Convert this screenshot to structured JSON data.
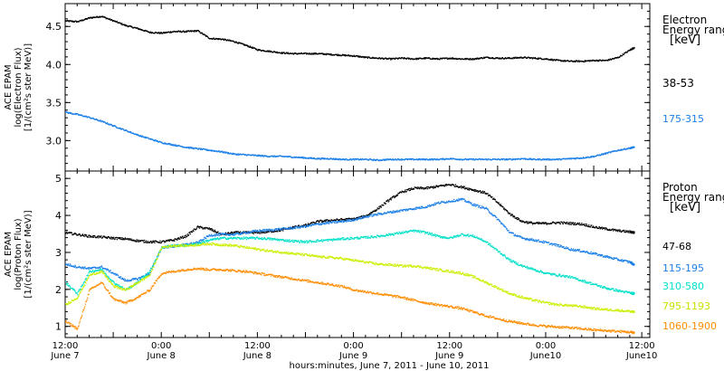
{
  "chart_data": [
    {
      "type": "line",
      "ylabel": [
        "ACE EPAM",
        "log(Electron Flux)",
        "[1/(cm²s ster MeV)]"
      ],
      "ylim": [
        2.6,
        4.8
      ],
      "yticks": [
        3.0,
        3.5,
        4.0,
        4.5
      ],
      "ytick_labels": [
        "3.0",
        "3.5",
        "4.0",
        "4.5"
      ],
      "legend_title": [
        "Electron",
        "Energy range",
        "[keV]"
      ],
      "x": [
        0,
        3,
        6,
        9,
        12,
        15,
        18,
        21,
        24,
        27,
        30,
        33,
        36,
        39,
        42,
        45,
        48,
        51,
        54,
        57,
        60,
        63,
        66,
        69,
        72,
        75,
        78,
        81,
        84,
        87,
        90,
        93,
        96,
        99,
        102,
        105,
        108,
        111,
        114,
        117,
        120,
        123,
        126,
        129,
        132,
        135,
        138,
        141,
        142
      ],
      "series": [
        {
          "name": "38-53",
          "color": "#000000",
          "values": [
            4.58,
            4.57,
            4.62,
            4.64,
            4.58,
            4.52,
            4.48,
            4.43,
            4.42,
            4.44,
            4.44,
            4.45,
            4.35,
            4.34,
            4.31,
            4.26,
            4.2,
            4.18,
            4.16,
            4.15,
            4.15,
            4.15,
            4.14,
            4.13,
            4.12,
            4.1,
            4.09,
            4.08,
            4.09,
            4.08,
            4.09,
            4.08,
            4.09,
            4.08,
            4.08,
            4.1,
            4.09,
            4.09,
            4.1,
            4.09,
            4.08,
            4.06,
            4.05,
            4.05,
            4.06,
            4.06,
            4.1,
            4.2,
            4.23
          ]
        },
        {
          "name": "175-315",
          "color": "#1a7fe8",
          "values": [
            3.38,
            3.35,
            3.31,
            3.26,
            3.2,
            3.14,
            3.08,
            3.03,
            2.98,
            2.95,
            2.92,
            2.9,
            2.88,
            2.86,
            2.83,
            2.82,
            2.81,
            2.8,
            2.8,
            2.79,
            2.78,
            2.77,
            2.77,
            2.76,
            2.76,
            2.76,
            2.75,
            2.76,
            2.76,
            2.76,
            2.76,
            2.76,
            2.77,
            2.76,
            2.76,
            2.76,
            2.76,
            2.76,
            2.77,
            2.76,
            2.76,
            2.76,
            2.77,
            2.78,
            2.8,
            2.84,
            2.88,
            2.91,
            2.92
          ]
        }
      ]
    },
    {
      "type": "line",
      "ylabel": [
        "ACE EPAM",
        "log(Proton Flux)",
        "[1/(cm²s ster MeV)]"
      ],
      "ylim": [
        0.7,
        5.2
      ],
      "yticks": [
        1,
        2,
        3,
        4,
        5
      ],
      "ytick_labels": [
        "1",
        "2",
        "3",
        "4",
        "5"
      ],
      "legend_title": [
        "Proton",
        "Energy range",
        "[keV]"
      ],
      "xlabel": "hours:minutes, June  7, 2011 - June 10, 2011",
      "xticks": [
        0,
        12,
        24,
        36,
        48,
        60,
        72,
        84,
        96,
        108,
        120
      ],
      "xtick_time_labels": [
        "12:00",
        "0:00",
        "12:00",
        "0:00",
        "12:00",
        "0:00",
        "12:00"
      ],
      "xtick_time_positions": [
        0,
        24,
        48,
        72,
        96,
        120,
        144
      ],
      "xtick_date_labels": [
        "June 7",
        "June 8",
        "June 8",
        "June 9",
        "June 9",
        "June10",
        "June10"
      ],
      "x": [
        0,
        3,
        6,
        9,
        12,
        15,
        18,
        21,
        24,
        27,
        30,
        33,
        36,
        39,
        42,
        45,
        48,
        51,
        54,
        57,
        60,
        63,
        66,
        69,
        72,
        75,
        78,
        81,
        84,
        87,
        90,
        93,
        96,
        99,
        102,
        105,
        108,
        111,
        114,
        117,
        120,
        123,
        126,
        129,
        132,
        135,
        138,
        141,
        142
      ],
      "series": [
        {
          "name": "47-68",
          "color": "#000000",
          "values": [
            3.55,
            3.5,
            3.45,
            3.43,
            3.4,
            3.38,
            3.33,
            3.3,
            3.3,
            3.35,
            3.45,
            3.7,
            3.65,
            3.5,
            3.55,
            3.55,
            3.55,
            3.58,
            3.62,
            3.7,
            3.75,
            3.85,
            3.88,
            3.9,
            3.92,
            4.0,
            4.2,
            4.45,
            4.65,
            4.75,
            4.75,
            4.8,
            4.85,
            4.78,
            4.7,
            4.62,
            4.35,
            4.05,
            3.85,
            3.8,
            3.8,
            3.82,
            3.8,
            3.78,
            3.7,
            3.65,
            3.6,
            3.57,
            3.55
          ]
        },
        {
          "name": "115-195",
          "color": "#1a7fe8",
          "values": [
            2.7,
            2.62,
            2.58,
            2.62,
            2.45,
            2.25,
            2.3,
            2.45,
            3.15,
            3.18,
            3.23,
            3.28,
            3.48,
            3.5,
            3.5,
            3.55,
            3.6,
            3.62,
            3.65,
            3.68,
            3.72,
            3.78,
            3.82,
            3.85,
            3.9,
            3.98,
            4.05,
            4.1,
            4.15,
            4.2,
            4.25,
            4.35,
            4.4,
            4.45,
            4.3,
            4.2,
            3.9,
            3.55,
            3.4,
            3.35,
            3.28,
            3.2,
            3.1,
            3.05,
            2.98,
            2.9,
            2.82,
            2.75,
            2.68
          ]
        },
        {
          "name": "310-580",
          "color": "#00e0c8",
          "values": [
            2.2,
            1.9,
            2.5,
            2.55,
            2.2,
            2.0,
            2.2,
            2.5,
            3.15,
            3.2,
            3.2,
            3.25,
            3.35,
            3.4,
            3.4,
            3.4,
            3.4,
            3.38,
            3.35,
            3.32,
            3.3,
            3.33,
            3.35,
            3.38,
            3.4,
            3.42,
            3.45,
            3.5,
            3.55,
            3.6,
            3.55,
            3.45,
            3.4,
            3.5,
            3.45,
            3.3,
            3.05,
            2.8,
            2.65,
            2.55,
            2.45,
            2.4,
            2.35,
            2.25,
            2.15,
            2.05,
            1.98,
            1.92,
            1.9
          ]
        },
        {
          "name": "795-1193",
          "color": "#ccee00",
          "values": [
            1.6,
            1.8,
            2.4,
            2.5,
            2.1,
            2.0,
            2.2,
            2.4,
            3.15,
            3.2,
            3.2,
            3.22,
            3.25,
            3.22,
            3.2,
            3.15,
            3.1,
            3.05,
            3.02,
            2.98,
            2.95,
            2.9,
            2.88,
            2.85,
            2.8,
            2.75,
            2.7,
            2.68,
            2.65,
            2.65,
            2.6,
            2.55,
            2.5,
            2.45,
            2.35,
            2.2,
            2.05,
            1.9,
            1.8,
            1.72,
            1.65,
            1.6,
            1.58,
            1.55,
            1.5,
            1.47,
            1.45,
            1.42,
            1.4
          ]
        },
        {
          "name": "1060-1900",
          "color": "#ff8c00",
          "values": [
            1.15,
            0.95,
            2.0,
            2.2,
            1.75,
            1.65,
            1.8,
            2.0,
            2.45,
            2.5,
            2.55,
            2.58,
            2.55,
            2.55,
            2.52,
            2.5,
            2.45,
            2.4,
            2.35,
            2.3,
            2.25,
            2.2,
            2.15,
            2.1,
            2.0,
            1.95,
            1.9,
            1.85,
            1.8,
            1.72,
            1.65,
            1.6,
            1.55,
            1.5,
            1.4,
            1.3,
            1.22,
            1.15,
            1.1,
            1.05,
            1.02,
            1.0,
            0.98,
            0.95,
            0.92,
            0.9,
            0.88,
            0.86,
            0.85
          ]
        }
      ]
    }
  ]
}
